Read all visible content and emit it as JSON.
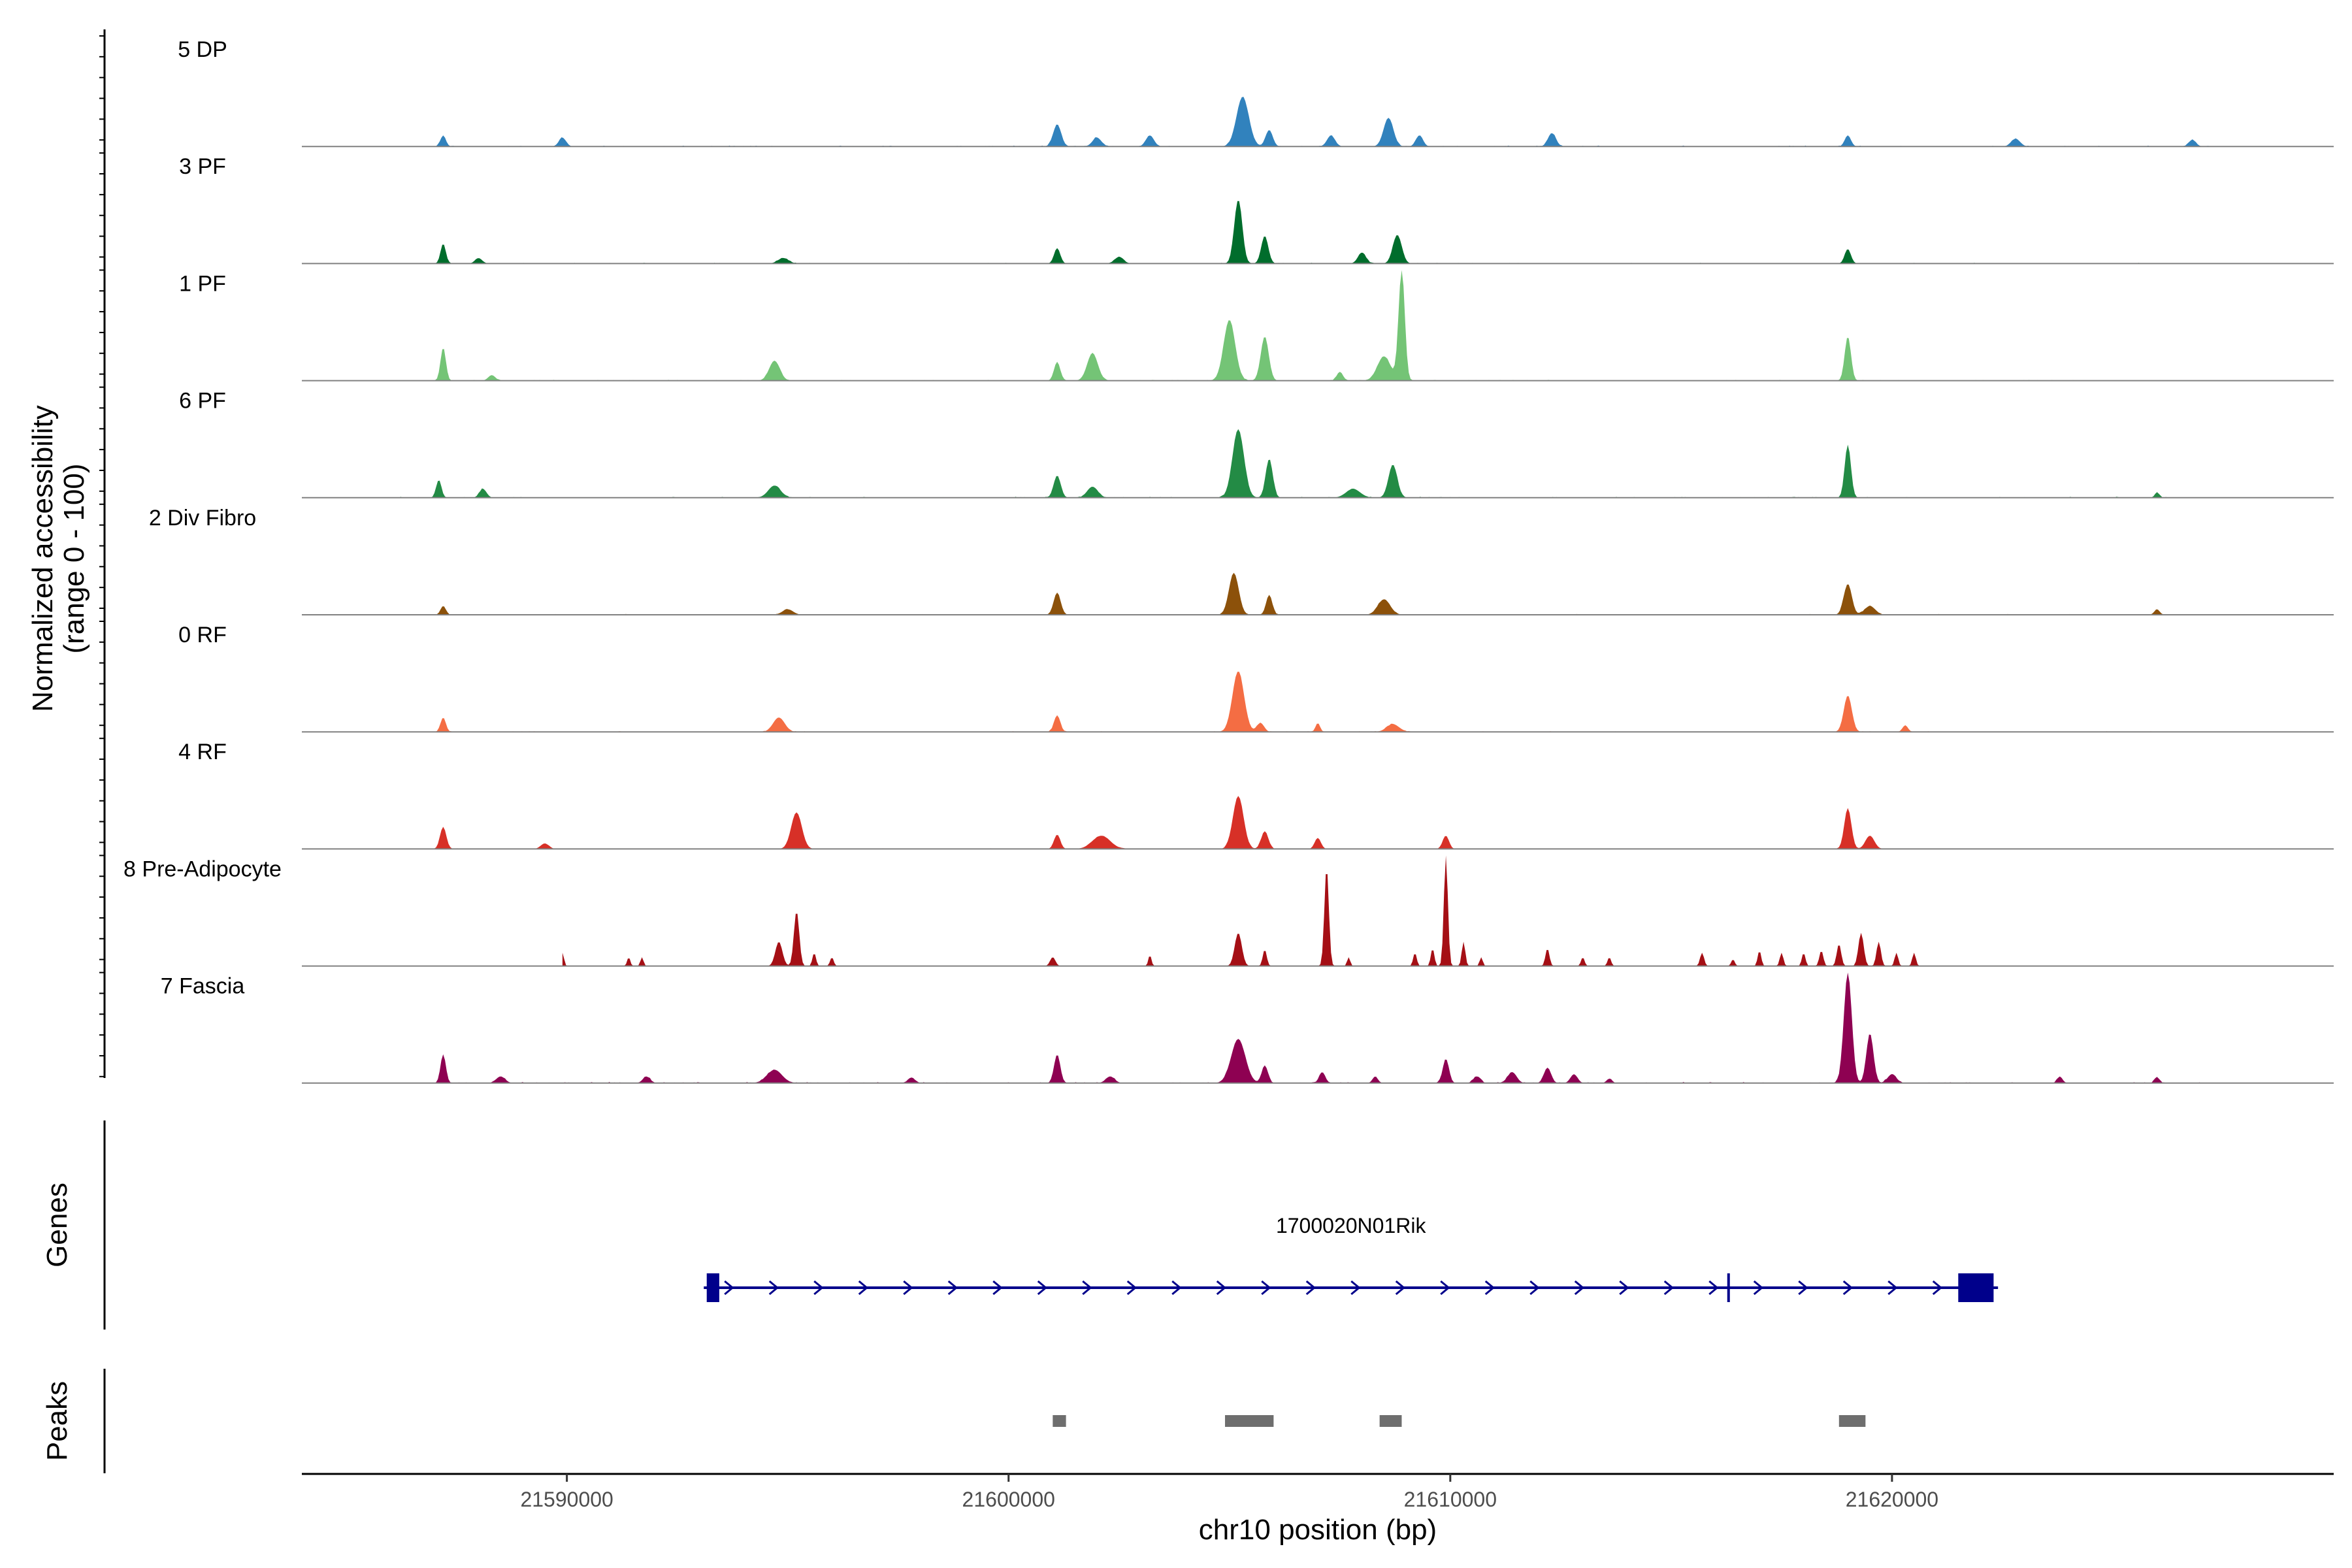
{
  "chart_data": {
    "type": "area",
    "title": "",
    "ylabel": "Normalized accessibility",
    "ylabel_sub": "(range 0 - 100)",
    "xlabel": "chr10 position (bp)",
    "xlim": [
      21584000,
      21630000
    ],
    "ylim": [
      0,
      100
    ],
    "x_ticks": [
      21590000,
      21600000,
      21610000,
      21620000
    ],
    "x_tick_labels": [
      "21590000",
      "21600000",
      "21610000",
      "21620000"
    ],
    "tracks": [
      {
        "name": "5 DP",
        "color": "#3182bd",
        "extent": [
          21586200,
          21627200
        ],
        "noise": 0.035,
        "seed": 11,
        "peaks": [
          [
            21587200,
            10,
            60
          ],
          [
            21589900,
            8,
            80
          ],
          [
            21601100,
            20,
            90
          ],
          [
            21602000,
            8,
            100
          ],
          [
            21603200,
            10,
            90
          ],
          [
            21605300,
            45,
            140
          ],
          [
            21605900,
            15,
            80
          ],
          [
            21607300,
            10,
            90
          ],
          [
            21608600,
            26,
            110
          ],
          [
            21609300,
            10,
            80
          ],
          [
            21612300,
            12,
            90
          ],
          [
            21619000,
            10,
            70
          ],
          [
            21622800,
            7,
            100
          ],
          [
            21626800,
            6,
            80
          ]
        ]
      },
      {
        "name": "3 PF",
        "color": "#006d2c",
        "extent": [
          21586700,
          21626400
        ],
        "noise": 0.03,
        "seed": 23,
        "peaks": [
          [
            21587200,
            18,
            60
          ],
          [
            21588000,
            5,
            80
          ],
          [
            21594900,
            5,
            120
          ],
          [
            21601100,
            14,
            70
          ],
          [
            21602500,
            6,
            100
          ],
          [
            21605200,
            58,
            90
          ],
          [
            21605800,
            25,
            80
          ],
          [
            21608000,
            10,
            90
          ],
          [
            21608800,
            26,
            100
          ],
          [
            21619000,
            13,
            70
          ]
        ]
      },
      {
        "name": "1 PF",
        "color": "#74c476",
        "extent": [
          21586500,
          21626000
        ],
        "noise": 0.03,
        "seed": 37,
        "peaks": [
          [
            21587200,
            30,
            60
          ],
          [
            21588300,
            5,
            80
          ],
          [
            21594700,
            18,
            120
          ],
          [
            21601100,
            17,
            70
          ],
          [
            21601900,
            25,
            120
          ],
          [
            21605000,
            55,
            130
          ],
          [
            21605800,
            40,
            90
          ],
          [
            21607500,
            8,
            70
          ],
          [
            21608500,
            22,
            150
          ],
          [
            21608900,
            100,
            70
          ],
          [
            21619000,
            40,
            70
          ]
        ]
      },
      {
        "name": "6 PF",
        "color": "#238b45",
        "extent": [
          21586200,
          21626400
        ],
        "noise": 0.035,
        "seed": 41,
        "peaks": [
          [
            21587100,
            16,
            60
          ],
          [
            21588100,
            8,
            80
          ],
          [
            21594700,
            11,
            140
          ],
          [
            21601100,
            20,
            80
          ],
          [
            21601900,
            10,
            120
          ],
          [
            21605200,
            62,
            130
          ],
          [
            21605900,
            35,
            80
          ],
          [
            21607800,
            8,
            160
          ],
          [
            21608700,
            30,
            100
          ],
          [
            21619000,
            48,
            70
          ],
          [
            21626000,
            5,
            50
          ]
        ]
      },
      {
        "name": "2 Div Fibro",
        "color": "#8c510a",
        "extent": [
          21586500,
          21626400
        ],
        "noise": 0.03,
        "seed": 53,
        "peaks": [
          [
            21587200,
            8,
            60
          ],
          [
            21595000,
            5,
            120
          ],
          [
            21601100,
            20,
            80
          ],
          [
            21605100,
            38,
            110
          ],
          [
            21605900,
            18,
            70
          ],
          [
            21608500,
            14,
            140
          ],
          [
            21619000,
            28,
            90
          ],
          [
            21619500,
            8,
            120
          ],
          [
            21626000,
            5,
            60
          ]
        ]
      },
      {
        "name": "0 RF",
        "color": "#f46d43",
        "extent": [
          21586700,
          21626500
        ],
        "noise": 0.025,
        "seed": 67,
        "peaks": [
          [
            21587200,
            13,
            60
          ],
          [
            21594800,
            13,
            130
          ],
          [
            21601100,
            15,
            70
          ],
          [
            21605200,
            55,
            130
          ],
          [
            21605700,
            8,
            80
          ],
          [
            21607000,
            8,
            50
          ],
          [
            21608700,
            7,
            140
          ],
          [
            21619000,
            33,
            90
          ],
          [
            21620300,
            6,
            60
          ]
        ]
      },
      {
        "name": "4 RF",
        "color": "#d73027",
        "extent": [
          21586800,
          21626500
        ],
        "noise": 0.025,
        "seed": 71,
        "peaks": [
          [
            21587200,
            20,
            70
          ],
          [
            21589500,
            5,
            90
          ],
          [
            21595200,
            33,
            120
          ],
          [
            21601100,
            13,
            70
          ],
          [
            21602100,
            12,
            200
          ],
          [
            21605200,
            48,
            120
          ],
          [
            21605800,
            16,
            80
          ],
          [
            21607000,
            10,
            70
          ],
          [
            21609900,
            12,
            70
          ],
          [
            21619000,
            37,
            80
          ],
          [
            21619500,
            12,
            100
          ]
        ]
      },
      {
        "name": "8 Pre-Adipocyte",
        "color": "#a50f15",
        "extent": [
          21589900,
          21620800
        ],
        "noise": 0.0,
        "seed": 83,
        "peaks": [
          [
            21589900,
            12,
            35
          ],
          [
            21591400,
            8,
            35
          ],
          [
            21591700,
            8,
            35
          ],
          [
            21594800,
            22,
            80
          ],
          [
            21595200,
            50,
            60
          ],
          [
            21595600,
            12,
            40
          ],
          [
            21596000,
            8,
            40
          ],
          [
            21601000,
            8,
            60
          ],
          [
            21603200,
            10,
            35
          ],
          [
            21605200,
            30,
            80
          ],
          [
            21605800,
            15,
            45
          ],
          [
            21607200,
            90,
            50
          ],
          [
            21607700,
            8,
            35
          ],
          [
            21609200,
            12,
            40
          ],
          [
            21609600,
            16,
            40
          ],
          [
            21609900,
            100,
            45
          ],
          [
            21610300,
            22,
            40
          ],
          [
            21610700,
            8,
            35
          ],
          [
            21612200,
            16,
            45
          ],
          [
            21613000,
            8,
            40
          ],
          [
            21613600,
            8,
            40
          ],
          [
            21615700,
            12,
            45
          ],
          [
            21616400,
            6,
            40
          ],
          [
            21617000,
            14,
            40
          ],
          [
            21617500,
            12,
            40
          ],
          [
            21618000,
            12,
            40
          ],
          [
            21618400,
            14,
            45
          ],
          [
            21618800,
            20,
            50
          ],
          [
            21619300,
            30,
            60
          ],
          [
            21619700,
            22,
            50
          ],
          [
            21620100,
            12,
            40
          ],
          [
            21620500,
            12,
            40
          ]
        ]
      },
      {
        "name": "7 Fascia",
        "color": "#8e0152",
        "extent": [
          21586200,
          21627100
        ],
        "noise": 0.04,
        "seed": 97,
        "peaks": [
          [
            21587200,
            26,
            60
          ],
          [
            21588500,
            6,
            100
          ],
          [
            21591800,
            6,
            80
          ],
          [
            21594700,
            12,
            170
          ],
          [
            21597800,
            5,
            80
          ],
          [
            21601100,
            26,
            70
          ],
          [
            21602300,
            6,
            100
          ],
          [
            21605200,
            40,
            160
          ],
          [
            21605800,
            16,
            70
          ],
          [
            21607100,
            10,
            70
          ],
          [
            21608300,
            6,
            60
          ],
          [
            21609900,
            22,
            70
          ],
          [
            21610600,
            6,
            80
          ],
          [
            21611400,
            10,
            100
          ],
          [
            21612200,
            14,
            80
          ],
          [
            21612800,
            8,
            80
          ],
          [
            21613600,
            4,
            60
          ],
          [
            21619000,
            100,
            90
          ],
          [
            21619500,
            45,
            80
          ],
          [
            21620000,
            8,
            100
          ],
          [
            21623800,
            6,
            60
          ],
          [
            21626000,
            5,
            60
          ]
        ]
      }
    ],
    "genes": [
      {
        "name": "1700020N01Rik",
        "strand": "+",
        "start": 21593100,
        "end": 21622400,
        "color": "#00008b",
        "exons": [
          [
            21593200,
            21593450
          ],
          [
            21616300,
            21616350
          ],
          [
            21621500,
            21622300
          ]
        ]
      }
    ],
    "peaks_track": {
      "color": "#6e6e6e",
      "regions": [
        [
          21601000,
          21601300
        ],
        [
          21604900,
          21606000
        ],
        [
          21608400,
          21608900
        ],
        [
          21618800,
          21619400
        ]
      ]
    },
    "panel_labels": {
      "genes": "Genes",
      "peaks": "Peaks"
    }
  }
}
